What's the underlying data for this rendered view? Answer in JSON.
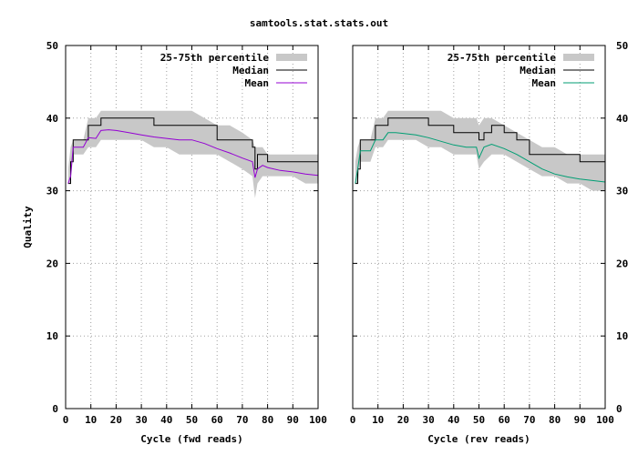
{
  "title": "samtools.stat.stats.out",
  "colors": {
    "band": "#c8c8c8",
    "median": "#000000",
    "mean_fwd": "#9400d3",
    "mean_rev": "#009e73"
  },
  "chart_data": [
    {
      "type": "line",
      "xlabel": "Cycle (fwd reads)",
      "ylabel": "Quality",
      "xlim": [
        0,
        100
      ],
      "ylim": [
        0,
        50
      ],
      "xticks": [
        0,
        10,
        20,
        30,
        40,
        50,
        60,
        70,
        80,
        90,
        100
      ],
      "yticks": [
        0,
        10,
        20,
        30,
        40,
        50
      ],
      "grid": true,
      "legend_position": "top-right",
      "legend": {
        "band": "25-75th percentile",
        "median": "Median",
        "mean": "Mean"
      },
      "x": [
        1,
        2,
        3,
        5,
        7,
        9,
        12,
        14,
        17,
        20,
        25,
        30,
        35,
        40,
        45,
        50,
        55,
        60,
        65,
        70,
        74,
        75,
        76,
        78,
        80,
        85,
        90,
        95,
        100
      ],
      "mean": [
        31,
        32,
        36,
        36,
        36,
        37.3,
        37.2,
        38.3,
        38.4,
        38.3,
        38,
        37.7,
        37.4,
        37.2,
        37,
        37,
        36.5,
        35.8,
        35.2,
        34.5,
        34,
        31.8,
        33,
        33.5,
        33.2,
        32.8,
        32.6,
        32.3,
        32.1
      ],
      "median": [
        31,
        34,
        37,
        37,
        37,
        39,
        39,
        40,
        40,
        40,
        40,
        40,
        39,
        39,
        39,
        39,
        39,
        37,
        37,
        37,
        36,
        33,
        35,
        35,
        34,
        34,
        34,
        34,
        34
      ],
      "q25": [
        31,
        31,
        35,
        35,
        35,
        36,
        36,
        37,
        37,
        37,
        37,
        37,
        36,
        36,
        35,
        35,
        35,
        35,
        34,
        33,
        32,
        29,
        31,
        32,
        32,
        32,
        32,
        31,
        31
      ],
      "q75": [
        33,
        36,
        37,
        37,
        37,
        40,
        40,
        41,
        41,
        41,
        41,
        41,
        41,
        41,
        41,
        41,
        40,
        39,
        39,
        38,
        37,
        36,
        36,
        36,
        35,
        35,
        35,
        35,
        35
      ]
    },
    {
      "type": "line",
      "xlabel": "Cycle (rev reads)",
      "ylabel": "",
      "xlim": [
        0,
        100
      ],
      "ylim": [
        0,
        50
      ],
      "xticks": [
        0,
        10,
        20,
        30,
        40,
        50,
        60,
        70,
        80,
        90,
        100
      ],
      "yticks": [
        0,
        10,
        20,
        30,
        40,
        50
      ],
      "grid": true,
      "legend_position": "top-right",
      "legend": {
        "band": "25-75th percentile",
        "median": "Median",
        "mean": "Mean"
      },
      "x": [
        1,
        2,
        3,
        5,
        7,
        9,
        12,
        14,
        17,
        20,
        25,
        30,
        35,
        40,
        45,
        49,
        50,
        52,
        55,
        60,
        65,
        70,
        75,
        80,
        85,
        90,
        95,
        100
      ],
      "mean": [
        31,
        33,
        35.5,
        35.5,
        35.5,
        37,
        37,
        38,
        38,
        37.9,
        37.7,
        37.3,
        36.8,
        36.3,
        36,
        36,
        34.5,
        36,
        36.4,
        35.8,
        35,
        34,
        33,
        32.3,
        31.9,
        31.6,
        31.4,
        31.2
      ],
      "median": [
        31,
        33,
        37,
        37,
        37,
        39,
        39,
        40,
        40,
        40,
        40,
        39,
        39,
        38,
        38,
        38,
        37,
        38,
        39,
        38,
        37,
        35,
        35,
        35,
        35,
        34,
        34,
        34
      ],
      "q25": [
        31,
        31,
        34,
        34,
        34,
        36,
        36,
        37,
        37,
        37,
        37,
        36,
        36,
        35,
        35,
        35,
        33,
        34,
        35,
        35,
        34,
        33,
        32,
        32,
        31,
        31,
        30,
        30
      ],
      "q75": [
        34,
        36,
        37,
        37,
        37,
        40,
        40,
        41,
        41,
        41,
        41,
        41,
        41,
        40,
        40,
        40,
        39,
        40,
        40,
        39,
        38,
        37,
        36,
        36,
        35,
        35,
        35,
        35
      ]
    }
  ]
}
